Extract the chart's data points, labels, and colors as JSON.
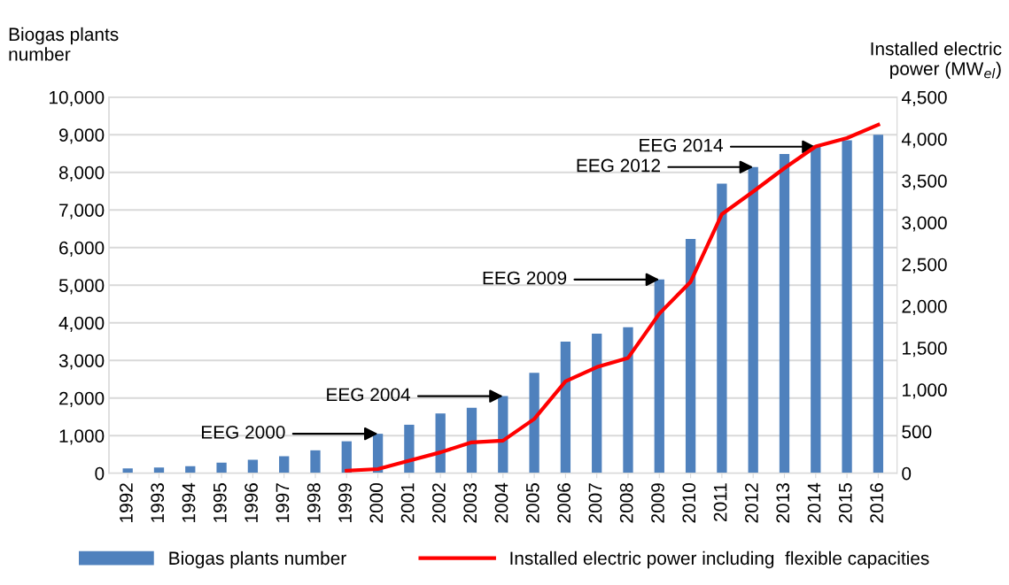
{
  "chart_data": {
    "type": "bar",
    "ylabel": "Biogas plants\nnumber",
    "y2label": "Installed electric\npower (MW$_{el}$)",
    "categories": [
      "1992",
      "1993",
      "1994",
      "1995",
      "1996",
      "1997",
      "1998",
      "1999",
      "2000",
      "2001",
      "2002",
      "2003",
      "2004",
      "2005",
      "2006",
      "2007",
      "2008",
      "2009",
      "2010",
      "2011",
      "2012",
      "2013",
      "2014",
      "2015",
      "2016"
    ],
    "series": [
      {
        "name": "Biogas plants number",
        "color": "#4f81bd",
        "values": [
          130,
          150,
          190,
          280,
          360,
          450,
          610,
          850,
          1050,
          1290,
          1590,
          1740,
          2050,
          2670,
          3500,
          3710,
          3880,
          5150,
          6230,
          7700,
          8140,
          8490,
          8680,
          8850,
          9000
        ]
      },
      {
        "name": "Installed electric power including  flexible capacities",
        "type": "line",
        "axis": "y2",
        "color": "#ff0000",
        "values": [
          null,
          null,
          null,
          null,
          null,
          null,
          null,
          30,
          50,
          150,
          250,
          370,
          390,
          650,
          1100,
          1270,
          1380,
          1910,
          2290,
          3100,
          3370,
          3650,
          3910,
          4010,
          4170
        ]
      }
    ],
    "ylim": [
      0,
      10000
    ],
    "yticks": [
      0,
      {
        "value": 1000,
        "label": "1,000"
      },
      {
        "value": 2000,
        "label": "2,000"
      },
      {
        "value": 3000,
        "label": "3,000"
      },
      {
        "value": 4000,
        "label": "4,000"
      },
      {
        "value": 5000,
        "label": "5,000"
      },
      {
        "value": 6000,
        "label": "6,000"
      },
      {
        "value": 7000,
        "label": "7,000"
      },
      {
        "value": 8000,
        "label": "8,000"
      },
      {
        "value": 9000,
        "label": "9,000"
      },
      {
        "value": 10000,
        "label": "10,000"
      }
    ],
    "y2lim": [
      0,
      4500
    ],
    "y2ticks": [
      0,
      500,
      {
        "value": 1000,
        "label": "1,000"
      },
      {
        "value": 1500,
        "label": "1,500"
      },
      {
        "value": 2000,
        "label": "2,000"
      },
      {
        "value": 2500,
        "label": "2,500"
      },
      {
        "value": 3000,
        "label": "3,000"
      },
      {
        "value": 3500,
        "label": "3,500"
      },
      {
        "value": 4000,
        "label": "4,000"
      },
      {
        "value": 4500,
        "label": "4,500"
      }
    ],
    "annotations": [
      {
        "text": "EEG 2000",
        "x": "2000",
        "y": 1050
      },
      {
        "text": "EEG 2004",
        "x": "2004",
        "y": 2050
      },
      {
        "text": "EEG 2009",
        "x": "2009",
        "y": 5150
      },
      {
        "text": "EEG 2012",
        "x": "2012",
        "y": 8140
      },
      {
        "text": "EEG 2014",
        "x": "2014",
        "y": 8680
      }
    ],
    "grid": "y",
    "legend": "bottom",
    "line_style": "solid",
    "marker": "none"
  }
}
